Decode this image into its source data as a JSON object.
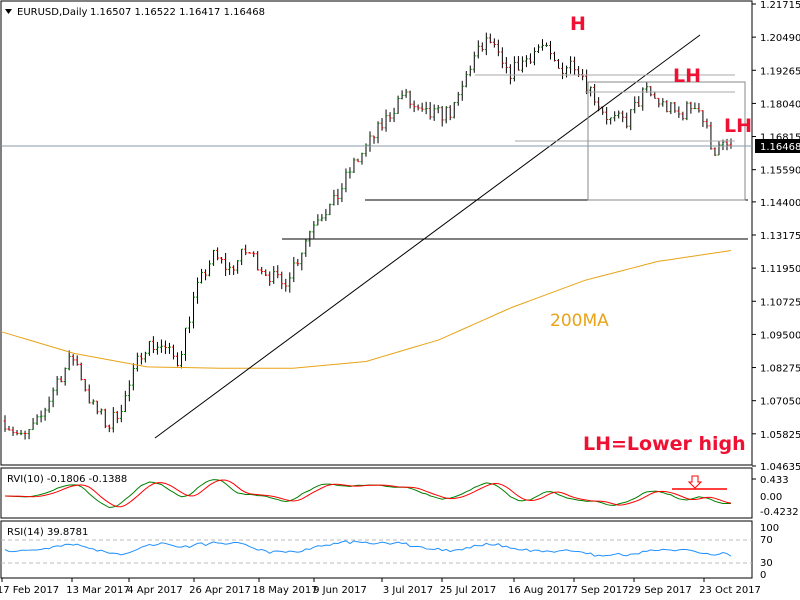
{
  "header": {
    "symbol": "EURUSD,Daily",
    "ohlc": "1.16507 1.16522 1.16417 1.16468"
  },
  "price_axis": {
    "labels": [
      "1.21715",
      "1.20490",
      "1.19265",
      "1.18040",
      "1.16815",
      "1.15590",
      "1.14400",
      "1.13175",
      "1.11950",
      "1.10725",
      "1.09500",
      "1.08275",
      "1.07050",
      "1.05825",
      "1.04635"
    ],
    "current_price": "1.16468"
  },
  "date_axis": [
    "17 Feb 2017",
    "13 Mar 2017",
    "4 Apr 2017",
    "26 Apr 2017",
    "18 May 2017",
    "9 Jun 2017",
    "3 Jul 2017",
    "25 Jul 2017",
    "16 Aug 2017",
    "7 Sep 2017",
    "29 Sep 2017",
    "23 Oct 2017"
  ],
  "annotations": {
    "h": "H",
    "lh1": "LH",
    "lh2": "LH",
    "ma_label": "200MA",
    "legend": "LH=Lower high"
  },
  "rvi": {
    "title": "RVI(10) -0.1806 -0.1388",
    "labels": [
      "0.433",
      "0.00",
      "-0.4232"
    ]
  },
  "rsi": {
    "title": "RSI(14) 39.8781",
    "labels": [
      "100",
      "70",
      "30",
      "0"
    ]
  },
  "colors": {
    "bull": "#008000",
    "bear": "#ff0000",
    "ma": "#e8a317",
    "annotation": "#ee1133",
    "rsi": "#1e90ff",
    "rvi_main": "#008000",
    "rvi_signal": "#ff0000"
  },
  "chart_data": {
    "type": "candlestick",
    "symbol": "EURUSD",
    "timeframe": "Daily",
    "ylim": [
      1.04635,
      1.21715
    ],
    "close_path_approx": [
      1.063,
      1.056,
      1.063,
      1.078,
      1.087,
      1.069,
      1.061,
      1.072,
      1.091,
      1.091,
      1.085,
      1.11,
      1.124,
      1.119,
      1.126,
      1.119,
      1.113,
      1.124,
      1.139,
      1.143,
      1.156,
      1.165,
      1.174,
      1.184,
      1.176,
      1.176,
      1.178,
      1.196,
      1.204,
      1.191,
      1.196,
      1.202,
      1.193,
      1.196,
      1.184,
      1.174,
      1.174,
      1.185,
      1.18,
      1.176,
      1.181,
      1.163,
      1.16468
    ],
    "ma200_approx": [
      1.096,
      1.088,
      1.083,
      1.0825,
      1.0825,
      1.085,
      1.093,
      1.105,
      1.115,
      1.122,
      1.126
    ],
    "support_levels": [
      1.144,
      1.1305
    ],
    "rsi_levels": [
      70,
      30
    ],
    "last": {
      "open": 1.16507,
      "high": 1.16522,
      "low": 1.16417,
      "close": 1.16468
    }
  }
}
